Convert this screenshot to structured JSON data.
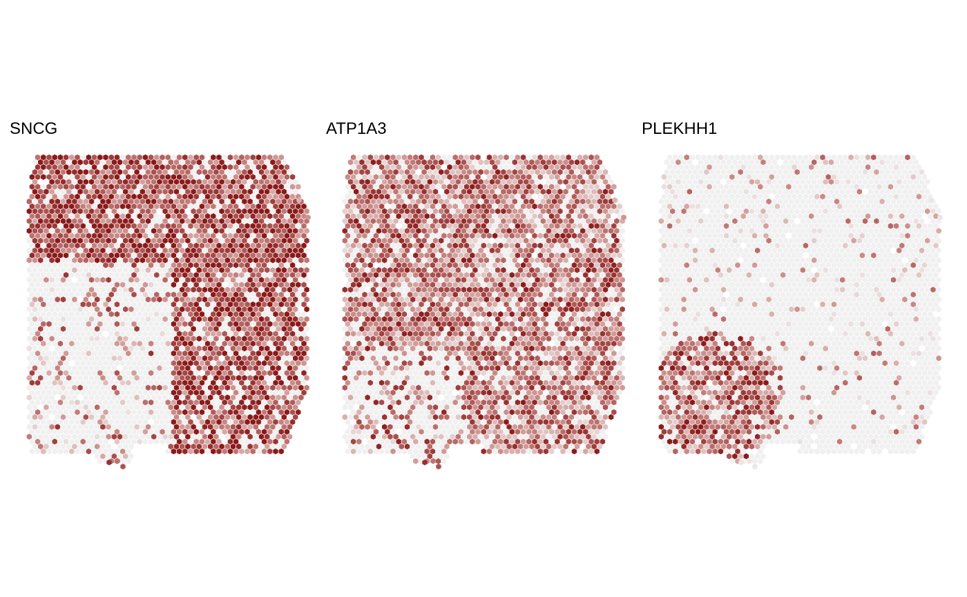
{
  "chart_data": [
    {
      "type": "heatmap",
      "title": "SNCG",
      "legend": "none",
      "grid": false,
      "colors": {
        "low": "#f0f0f0",
        "mid": "#c98a86",
        "high": "#8b1a1a"
      },
      "pattern": "high-top-and-right"
    },
    {
      "type": "heatmap",
      "title": "ATP1A3",
      "legend": "none",
      "grid": false,
      "colors": {
        "low": "#f0f0f0",
        "mid": "#c98a86",
        "high": "#8b1a1a"
      },
      "pattern": "high-broad"
    },
    {
      "type": "heatmap",
      "title": "PLEKHH1",
      "legend": "none",
      "grid": false,
      "colors": {
        "low": "#f0f0f0",
        "mid": "#c98a86",
        "high": "#8b1a1a"
      },
      "pattern": "high-bottom-left"
    }
  ]
}
